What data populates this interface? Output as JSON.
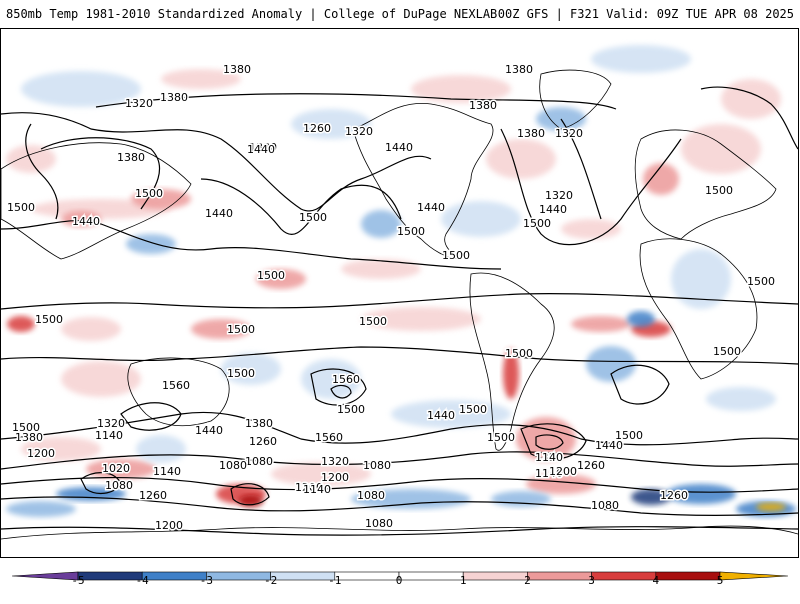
{
  "header": {
    "title": "850mb Temp 1981-2010 Standardized Anomaly | College of DuPage NEXLAB",
    "run_info": "00Z GFS | F321 Valid: 09Z TUE APR 08 2025"
  },
  "colorbar": {
    "ticks": [
      "-5",
      "-4",
      "-3",
      "-2",
      "-1",
      "0",
      "1",
      "2",
      "3",
      "4",
      "5"
    ],
    "colors": {
      "neg5": "#6a3d9a",
      "neg4": "#1f3a7a",
      "neg3": "#3f80c8",
      "neg2": "#8fb8e2",
      "neg1": "#cfe0f3",
      "neutral": "#ffffff",
      "pos1": "#f6d2d2",
      "pos2": "#ec9a9a",
      "pos3": "#d83d3d",
      "pos4": "#a80f0f",
      "pos5": "#f0b000"
    }
  },
  "contour_labels": [
    "1380",
    "1380",
    "1320",
    "1380",
    "1260",
    "1320",
    "1440",
    "1380",
    "1380",
    "1380",
    "1320",
    "1380",
    "1440",
    "1500",
    "1500",
    "1440",
    "1440",
    "1440",
    "1500",
    "1500",
    "1320",
    "1500",
    "1500",
    "1440",
    "1500",
    "1500",
    "1500",
    "1500",
    "1500",
    "1500",
    "1500",
    "1500",
    "1560",
    "1500",
    "1560",
    "1500",
    "1440",
    "1500",
    "1500",
    "1500",
    "1380",
    "1440",
    "1560",
    "1260",
    "1320",
    "1500",
    "1380",
    "1440",
    "1320",
    "1140",
    "1200",
    "1020",
    "1080",
    "1140",
    "1080",
    "1200",
    "1080",
    "1260",
    "1200",
    "1080",
    "1320",
    "1080",
    "1200",
    "1140",
    "1080",
    "1260",
    "1140",
    "1260",
    "1200",
    "1140",
    "1080",
    "1200"
  ]
}
